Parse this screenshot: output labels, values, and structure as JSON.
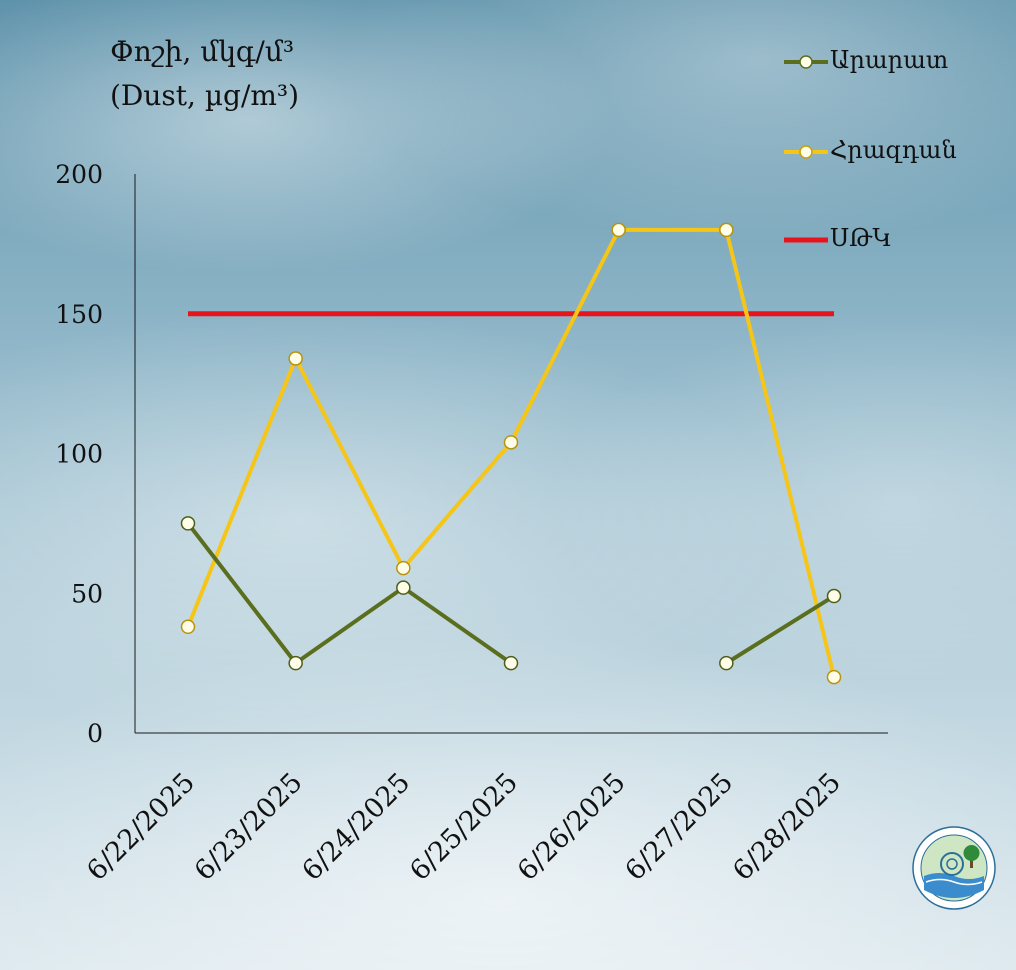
{
  "chart_data": {
    "type": "line",
    "ylabel_line1": "Փոշի, մկգ/մ³",
    "ylabel_line2": "(Dust, µg/m³)",
    "categories": [
      "6/22/2025",
      "6/23/2025",
      "6/24/2025",
      "6/25/2025",
      "6/26/2025",
      "6/27/2025",
      "6/28/2025"
    ],
    "ylim": [
      0,
      200
    ],
    "yticks": [
      "0",
      "50",
      "100",
      "150",
      "200"
    ],
    "grid": false,
    "legend_position": "top-right",
    "series": [
      {
        "name": "Արարատ",
        "color": "#5a6e1e",
        "values": [
          75,
          25,
          52,
          25,
          null,
          25,
          49
        ]
      },
      {
        "name": "Հրազդան",
        "color": "#f5c518",
        "values": [
          38,
          134,
          59,
          104,
          180,
          180,
          20
        ]
      }
    ],
    "reference_line": {
      "name": "ՍԹԿ",
      "color": "#e8141b",
      "value": 150
    }
  }
}
